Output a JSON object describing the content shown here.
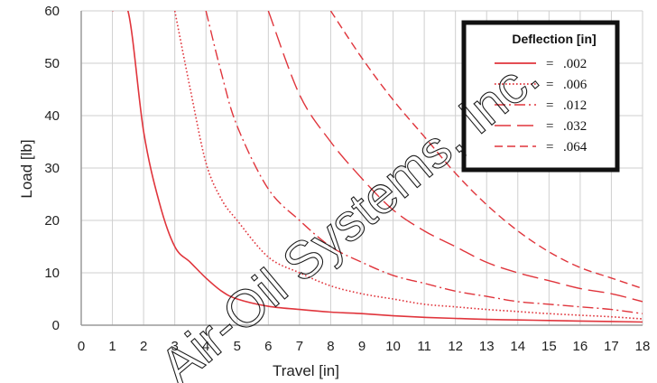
{
  "chart_data": {
    "type": "line",
    "xlabel": "Travel [in]",
    "ylabel": "Load [lb]",
    "xlim": [
      0,
      18
    ],
    "ylim": [
      0,
      60
    ],
    "xticks": [
      0,
      1,
      2,
      3,
      4,
      5,
      6,
      7,
      8,
      9,
      10,
      11,
      12,
      13,
      14,
      15,
      16,
      17,
      18
    ],
    "yticks": [
      0,
      10,
      20,
      30,
      40,
      50,
      60
    ],
    "grid": true,
    "legend_position": "top-right",
    "legend_title": "Deflection [in]",
    "color": "#e0353c",
    "x_samples": [
      1,
      1.5,
      2,
      2.5,
      3,
      3.5,
      4,
      4.5,
      5,
      6,
      7,
      8,
      9,
      10,
      11,
      12,
      13,
      14,
      15,
      16,
      17,
      18
    ],
    "series": [
      {
        "name": ".002",
        "style": "solid",
        "values": [
          60,
          60,
          37,
          23.5,
          15,
          12,
          9,
          6.5,
          5,
          3.6,
          3,
          2.5,
          2.2,
          1.8,
          1.5,
          1.3,
          1.1,
          1,
          0.9,
          0.8,
          0.7,
          0.6
        ]
      },
      {
        "name": ".006",
        "style": "dotted",
        "values": [
          null,
          null,
          null,
          null,
          60,
          45,
          31,
          24,
          20,
          13,
          10,
          7.5,
          6,
          5,
          4,
          3.5,
          3,
          2.6,
          2.2,
          1.9,
          1.6,
          1.2
        ]
      },
      {
        "name": ".012",
        "style": "dashdot",
        "values": [
          null,
          null,
          null,
          null,
          null,
          null,
          60,
          48,
          38,
          26,
          20,
          15,
          12,
          9.5,
          8,
          6.5,
          5.5,
          4.5,
          4,
          3.5,
          3,
          2.2
        ]
      },
      {
        "name": ".032",
        "style": "longdash",
        "values": [
          null,
          null,
          null,
          null,
          null,
          null,
          null,
          null,
          null,
          60,
          44,
          35,
          28,
          22,
          18,
          15,
          12,
          10,
          8.5,
          7,
          6,
          4.5
        ]
      },
      {
        "name": ".064",
        "style": "dash",
        "values": [
          null,
          null,
          null,
          null,
          null,
          null,
          null,
          null,
          null,
          null,
          null,
          60,
          51,
          43,
          36,
          29,
          23,
          18,
          14,
          11,
          9,
          7
        ]
      }
    ]
  },
  "legend_entries": [
    {
      "prefix": "=",
      "label": ".002"
    },
    {
      "prefix": "=",
      "label": ".006"
    },
    {
      "prefix": "=",
      "label": ".012"
    },
    {
      "prefix": "=",
      "label": ".032"
    },
    {
      "prefix": "=",
      "label": ".064"
    }
  ],
  "watermark": "Air-Oil Systems, Inc."
}
